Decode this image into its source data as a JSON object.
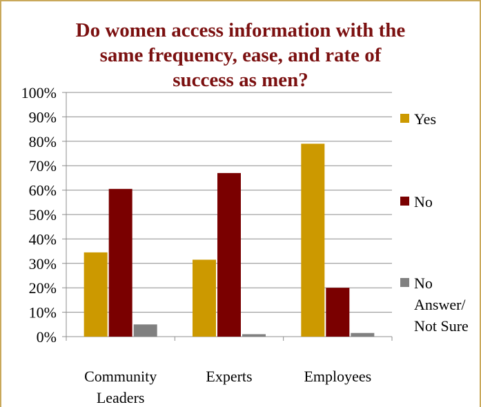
{
  "chart_data": {
    "type": "bar",
    "title_lines": [
      "Do women access information with the",
      "same frequency, ease, and rate of",
      "success as men?"
    ],
    "categories": [
      [
        "Community",
        "Leaders"
      ],
      [
        "Experts"
      ],
      [
        "Employees"
      ]
    ],
    "series": [
      {
        "name": "Yes",
        "color": "#cc9900",
        "values": [
          34.5,
          31.5,
          79
        ]
      },
      {
        "name": "No",
        "color": "#7a0000",
        "values": [
          60.5,
          67,
          20
        ]
      },
      {
        "name_lines": [
          "No",
          "Answer/",
          "Not Sure"
        ],
        "color": "#808080",
        "values": [
          5,
          1,
          1.5
        ]
      }
    ],
    "y_ticks": [
      "0%",
      "10%",
      "20%",
      "30%",
      "40%",
      "50%",
      "60%",
      "70%",
      "80%",
      "90%",
      "100%"
    ],
    "ylim": [
      0,
      100
    ],
    "grid": true,
    "legend_position": "right"
  }
}
